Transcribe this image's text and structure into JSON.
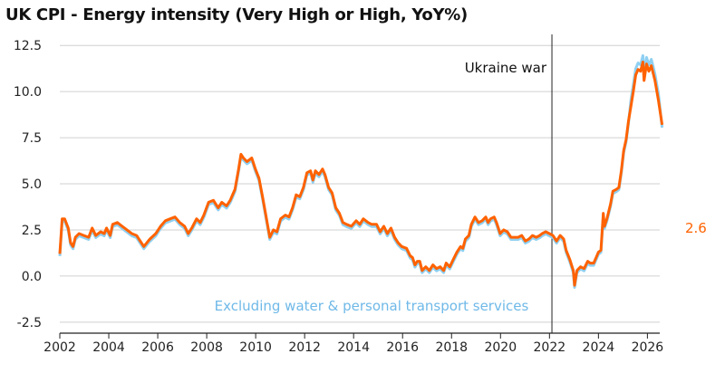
{
  "chart_data": {
    "type": "line",
    "title": "UK CPI - Energy intensity (Very High or High, YoY%)",
    "xlabel": "",
    "ylabel": "",
    "xlim": [
      2002,
      2027.3
    ],
    "ylim": [
      -3.0,
      13.0
    ],
    "x_ticks": [
      2002,
      2004,
      2006,
      2008,
      2010,
      2012,
      2014,
      2016,
      2018,
      2020,
      2022,
      2024,
      2026
    ],
    "y_ticks": [
      12.5,
      10.0,
      7.5,
      5.0,
      2.5,
      0.0,
      -2.5
    ],
    "y_tick_labels": [
      "12.5",
      "10.0",
      "7.5",
      "5.0",
      "2.5",
      "0.0",
      "-2.5"
    ],
    "grid": "horizontal",
    "colors": {
      "main": "#FF6200",
      "alt": "#8FD0F2",
      "axis": "#222222",
      "grid": "#D0D0D0"
    },
    "series": [
      {
        "name": "",
        "color": "#FF6200",
        "points": [
          [
            2002.0,
            1.2
          ],
          [
            2002.1,
            3.1
          ],
          [
            2002.2,
            3.1
          ],
          [
            2002.35,
            2.6
          ],
          [
            2002.45,
            1.8
          ],
          [
            2002.55,
            1.6
          ],
          [
            2002.65,
            2.1
          ],
          [
            2002.8,
            2.3
          ],
          [
            2003.0,
            2.2
          ],
          [
            2003.2,
            2.1
          ],
          [
            2003.35,
            2.6
          ],
          [
            2003.5,
            2.2
          ],
          [
            2003.7,
            2.4
          ],
          [
            2003.85,
            2.3
          ],
          [
            2003.95,
            2.6
          ],
          [
            2004.1,
            2.2
          ],
          [
            2004.2,
            2.8
          ],
          [
            2004.4,
            2.9
          ],
          [
            2004.6,
            2.7
          ],
          [
            2004.8,
            2.5
          ],
          [
            2005.0,
            2.3
          ],
          [
            2005.2,
            2.2
          ],
          [
            2005.5,
            1.6
          ],
          [
            2005.75,
            2.0
          ],
          [
            2006.0,
            2.3
          ],
          [
            2006.2,
            2.7
          ],
          [
            2006.4,
            3.0
          ],
          [
            2006.6,
            3.1
          ],
          [
            2006.8,
            3.2
          ],
          [
            2007.0,
            2.9
          ],
          [
            2007.2,
            2.7
          ],
          [
            2007.35,
            2.3
          ],
          [
            2007.5,
            2.6
          ],
          [
            2007.7,
            3.1
          ],
          [
            2007.85,
            2.9
          ],
          [
            2008.0,
            3.3
          ],
          [
            2008.2,
            4.0
          ],
          [
            2008.4,
            4.1
          ],
          [
            2008.5,
            3.9
          ],
          [
            2008.6,
            3.7
          ],
          [
            2008.75,
            4.0
          ],
          [
            2008.95,
            3.8
          ],
          [
            2009.1,
            4.1
          ],
          [
            2009.3,
            4.7
          ],
          [
            2009.45,
            5.8
          ],
          [
            2009.55,
            6.6
          ],
          [
            2009.65,
            6.4
          ],
          [
            2009.8,
            6.2
          ],
          [
            2009.9,
            6.3
          ],
          [
            2010.0,
            6.4
          ],
          [
            2010.15,
            5.8
          ],
          [
            2010.3,
            5.3
          ],
          [
            2010.45,
            4.3
          ],
          [
            2010.6,
            3.2
          ],
          [
            2010.75,
            2.1
          ],
          [
            2010.9,
            2.5
          ],
          [
            2011.05,
            2.4
          ],
          [
            2011.2,
            3.1
          ],
          [
            2011.4,
            3.3
          ],
          [
            2011.55,
            3.2
          ],
          [
            2011.7,
            3.7
          ],
          [
            2011.85,
            4.4
          ],
          [
            2012.0,
            4.3
          ],
          [
            2012.15,
            4.8
          ],
          [
            2012.3,
            5.6
          ],
          [
            2012.45,
            5.7
          ],
          [
            2012.55,
            5.2
          ],
          [
            2012.65,
            5.7
          ],
          [
            2012.8,
            5.5
          ],
          [
            2012.95,
            5.8
          ],
          [
            2013.05,
            5.5
          ],
          [
            2013.2,
            4.8
          ],
          [
            2013.35,
            4.5
          ],
          [
            2013.5,
            3.7
          ],
          [
            2013.65,
            3.4
          ],
          [
            2013.8,
            2.9
          ],
          [
            2013.95,
            2.8
          ],
          [
            2014.15,
            2.7
          ],
          [
            2014.35,
            3.0
          ],
          [
            2014.5,
            2.8
          ],
          [
            2014.65,
            3.1
          ],
          [
            2014.85,
            2.9
          ],
          [
            2015.0,
            2.8
          ],
          [
            2015.2,
            2.8
          ],
          [
            2015.35,
            2.4
          ],
          [
            2015.5,
            2.7
          ],
          [
            2015.65,
            2.3
          ],
          [
            2015.8,
            2.6
          ],
          [
            2015.95,
            2.1
          ],
          [
            2016.1,
            1.8
          ],
          [
            2016.25,
            1.6
          ],
          [
            2016.45,
            1.5
          ],
          [
            2016.6,
            1.1
          ],
          [
            2016.7,
            1.0
          ],
          [
            2016.8,
            0.6
          ],
          [
            2016.9,
            0.8
          ],
          [
            2017.0,
            0.8
          ],
          [
            2017.1,
            0.3
          ],
          [
            2017.25,
            0.5
          ],
          [
            2017.4,
            0.3
          ],
          [
            2017.55,
            0.6
          ],
          [
            2017.7,
            0.4
          ],
          [
            2017.85,
            0.5
          ],
          [
            2018.0,
            0.3
          ],
          [
            2018.1,
            0.7
          ],
          [
            2018.25,
            0.5
          ],
          [
            2018.4,
            0.9
          ],
          [
            2018.55,
            1.3
          ],
          [
            2018.7,
            1.6
          ],
          [
            2018.8,
            1.5
          ],
          [
            2018.9,
            2.0
          ],
          [
            2019.05,
            2.2
          ],
          [
            2019.15,
            2.8
          ],
          [
            2019.3,
            3.2
          ],
          [
            2019.45,
            2.9
          ],
          [
            2019.6,
            3.0
          ],
          [
            2019.75,
            3.2
          ],
          [
            2019.85,
            2.9
          ],
          [
            2019.95,
            3.1
          ],
          [
            2020.1,
            3.2
          ],
          [
            2020.2,
            2.9
          ],
          [
            2020.35,
            2.3
          ],
          [
            2020.5,
            2.5
          ],
          [
            2020.65,
            2.4
          ],
          [
            2020.8,
            2.1
          ],
          [
            2020.95,
            2.1
          ],
          [
            2021.1,
            2.1
          ],
          [
            2021.25,
            2.2
          ],
          [
            2021.4,
            1.9
          ],
          [
            2021.55,
            2.0
          ],
          [
            2021.7,
            2.2
          ],
          [
            2021.85,
            2.1
          ],
          [
            2022.0,
            2.2
          ],
          [
            2022.1,
            2.3
          ],
          [
            2022.25,
            2.4
          ],
          [
            2022.4,
            2.3
          ],
          [
            2022.55,
            2.2
          ],
          [
            2022.7,
            1.9
          ],
          [
            2022.85,
            2.2
          ],
          [
            2023.0,
            2.0
          ],
          [
            2023.1,
            1.4
          ],
          [
            2023.25,
            0.9
          ],
          [
            2023.4,
            0.3
          ],
          [
            2023.45,
            -0.5
          ],
          [
            2023.55,
            0.3
          ],
          [
            2023.7,
            0.5
          ],
          [
            2023.85,
            0.4
          ],
          [
            2024.0,
            0.8
          ],
          [
            2024.1,
            0.7
          ],
          [
            2024.25,
            0.7
          ],
          [
            2024.35,
            1.0
          ],
          [
            2024.45,
            1.3
          ],
          [
            2024.55,
            1.4
          ],
          [
            2024.65,
            3.4
          ],
          [
            2024.7,
            2.7
          ],
          [
            2024.8,
            3.1
          ],
          [
            2024.95,
            3.9
          ],
          [
            2025.05,
            4.6
          ],
          [
            2025.2,
            4.7
          ],
          [
            2025.3,
            4.8
          ],
          [
            2025.4,
            5.7
          ],
          [
            2025.5,
            6.8
          ],
          [
            2025.6,
            7.4
          ],
          [
            2025.7,
            8.4
          ],
          [
            2025.8,
            9.2
          ],
          [
            2025.9,
            10.0
          ],
          [
            2026.0,
            10.9
          ],
          [
            2026.1,
            11.2
          ],
          [
            2026.2,
            11.1
          ],
          [
            2026.3,
            11.6
          ],
          [
            2026.35,
            10.6
          ],
          [
            2026.45,
            11.5
          ],
          [
            2026.55,
            11.1
          ],
          [
            2026.65,
            11.4
          ],
          [
            2026.8,
            10.6
          ],
          [
            2026.95,
            9.5
          ],
          [
            2027.1,
            8.2
          ]
        ]
      }
    ],
    "value_label": "2.6",
    "annotations": [
      "Ukraine war",
      "Excluding water & personal transport services"
    ],
    "event_x": 2022.1
  }
}
